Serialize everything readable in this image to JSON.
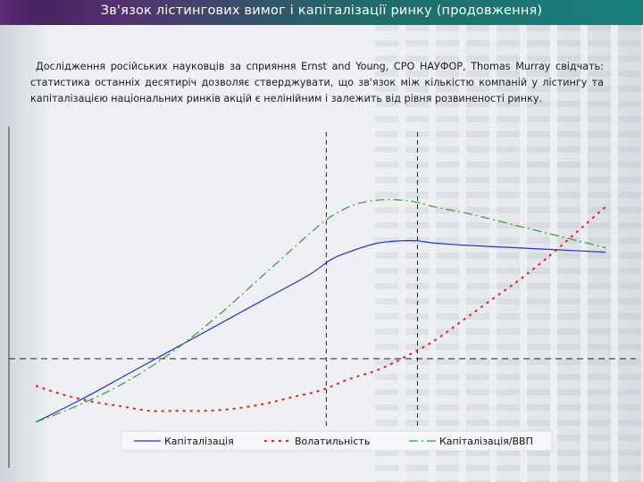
{
  "slide": {
    "title": "Зв'язок лістингових вимог і капіталізації ринку (продовження)",
    "intro": "Дослідження російських науковців за сприяння Ernst and Young, СРО НАУФОР, Thomas Murray свідчать: статистика останніх десятиріч дозволяє стверджувати, що зв'язок між кількістю компаній у лістингу та капіталізацією національних ринків акцій є нелінійним і залежить від рівня розвиненості ринку."
  },
  "chart_data": {
    "type": "line",
    "title": "",
    "xlabel": "",
    "ylabel": "",
    "xlim": [
      0,
      100
    ],
    "ylim": [
      -30,
      100
    ],
    "grid": false,
    "reference_lines": {
      "horizontal_y": 0,
      "vertical_x": [
        51,
        67
      ]
    },
    "legend_position": "bottom",
    "series": [
      {
        "name": "Капіталізація",
        "color": "#2233cc",
        "style": "solid",
        "x": [
          0,
          8,
          16,
          24,
          32,
          40,
          48,
          52,
          56,
          60,
          64,
          67,
          70,
          76,
          84,
          92,
          100
        ],
        "y": [
          -28,
          -18,
          -7,
          4,
          15,
          26,
          37,
          44,
          48,
          51,
          52,
          52,
          51,
          50,
          49,
          48,
          47
        ]
      },
      {
        "name": "Волатильність",
        "color": "#dd2222",
        "style": "dotted",
        "x": [
          0,
          5,
          10,
          15,
          20,
          25,
          30,
          35,
          40,
          45,
          50,
          55,
          60,
          65,
          70,
          75,
          80,
          85,
          90,
          95,
          100
        ],
        "y": [
          -12,
          -16,
          -19,
          -21,
          -23,
          -23,
          -23,
          -22,
          -20,
          -17,
          -14,
          -9,
          -5,
          1,
          8,
          17,
          26,
          35,
          45,
          56,
          67
        ]
      },
      {
        "name": "Капіталізація/ВВП",
        "color": "#339933",
        "style": "dashdot",
        "x": [
          0,
          8,
          16,
          24,
          32,
          40,
          48,
          52,
          56,
          60,
          64,
          67,
          70,
          76,
          84,
          92,
          100
        ],
        "y": [
          -28,
          -20,
          -10,
          3,
          19,
          37,
          55,
          63,
          68,
          70,
          70,
          69,
          67,
          64,
          59,
          54,
          49
        ]
      }
    ]
  }
}
